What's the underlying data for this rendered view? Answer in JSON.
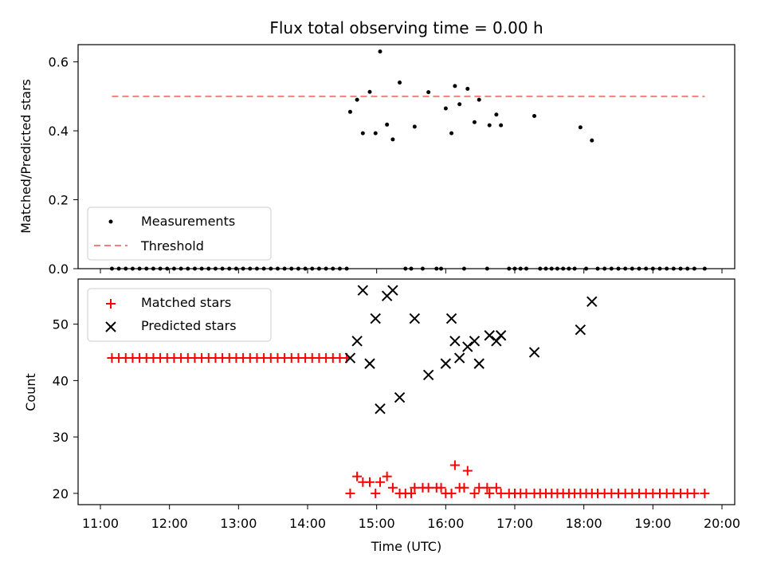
{
  "chart_data": [
    {
      "type": "scatter",
      "title": "Flux total observing time = 0.00 h",
      "ylabel": "Matched/Predicted stars",
      "xlabel": "",
      "xlim": [
        "11:00",
        "20:00"
      ],
      "ylim": [
        0,
        0.65
      ],
      "yticks": [
        "0.0",
        "0.2",
        "0.4",
        "0.6"
      ],
      "grid": false,
      "legend_position": "lower-left",
      "threshold": {
        "name": "Threshold",
        "value": 0.5,
        "x": [
          "11:10",
          "19:45"
        ],
        "color": "#f08080"
      },
      "series": [
        {
          "name": "Measurements",
          "color": "#000000",
          "marker": "dot",
          "points": [
            [
              "11:10",
              0
            ],
            [
              "11:16",
              0
            ],
            [
              "11:22",
              0
            ],
            [
              "11:28",
              0
            ],
            [
              "11:34",
              0
            ],
            [
              "11:40",
              0
            ],
            [
              "11:46",
              0
            ],
            [
              "11:52",
              0
            ],
            [
              "11:58",
              0
            ],
            [
              "12:04",
              0
            ],
            [
              "12:10",
              0
            ],
            [
              "12:16",
              0
            ],
            [
              "12:22",
              0
            ],
            [
              "12:28",
              0
            ],
            [
              "12:34",
              0
            ],
            [
              "12:40",
              0
            ],
            [
              "12:46",
              0
            ],
            [
              "12:52",
              0
            ],
            [
              "12:58",
              0
            ],
            [
              "13:04",
              0
            ],
            [
              "13:10",
              0
            ],
            [
              "13:16",
              0
            ],
            [
              "13:22",
              0
            ],
            [
              "13:28",
              0
            ],
            [
              "13:34",
              0
            ],
            [
              "13:40",
              0
            ],
            [
              "13:46",
              0
            ],
            [
              "13:52",
              0
            ],
            [
              "13:58",
              0
            ],
            [
              "14:04",
              0
            ],
            [
              "14:10",
              0
            ],
            [
              "14:16",
              0
            ],
            [
              "14:22",
              0
            ],
            [
              "14:28",
              0
            ],
            [
              "14:34",
              0
            ],
            [
              "14:37",
              0.455
            ],
            [
              "14:43",
              0.49
            ],
            [
              "14:48",
              0.393
            ],
            [
              "14:54",
              0.513
            ],
            [
              "14:59",
              0.393
            ],
            [
              "15:03",
              0.63
            ],
            [
              "15:09",
              0.418
            ],
            [
              "15:14",
              0.375
            ],
            [
              "15:20",
              0.54
            ],
            [
              "15:25",
              0
            ],
            [
              "15:30",
              0
            ],
            [
              "15:33",
              0.412
            ],
            [
              "15:40",
              0
            ],
            [
              "15:45",
              0.512
            ],
            [
              "15:52",
              0
            ],
            [
              "15:56",
              0
            ],
            [
              "16:00",
              0.465
            ],
            [
              "16:05",
              0.393
            ],
            [
              "16:08",
              0.53
            ],
            [
              "16:12",
              0.477
            ],
            [
              "16:16",
              0
            ],
            [
              "16:19",
              0.522
            ],
            [
              "16:25",
              0.425
            ],
            [
              "16:29",
              0.49
            ],
            [
              "16:36",
              0
            ],
            [
              "16:38",
              0.416
            ],
            [
              "16:44",
              0.447
            ],
            [
              "16:48",
              0.416
            ],
            [
              "16:55",
              0
            ],
            [
              "17:00",
              0
            ],
            [
              "17:05",
              0
            ],
            [
              "17:10",
              0
            ],
            [
              "17:17",
              0.443
            ],
            [
              "17:22",
              0
            ],
            [
              "17:27",
              0
            ],
            [
              "17:32",
              0
            ],
            [
              "17:37",
              0
            ],
            [
              "17:42",
              0
            ],
            [
              "17:47",
              0
            ],
            [
              "17:52",
              0
            ],
            [
              "17:57",
              0.41
            ],
            [
              "18:02",
              0
            ],
            [
              "18:07",
              0.372
            ],
            [
              "18:12",
              0
            ],
            [
              "18:18",
              0
            ],
            [
              "18:24",
              0
            ],
            [
              "18:30",
              0
            ],
            [
              "18:36",
              0
            ],
            [
              "18:42",
              0
            ],
            [
              "18:48",
              0
            ],
            [
              "18:54",
              0
            ],
            [
              "19:00",
              0
            ],
            [
              "19:06",
              0
            ],
            [
              "19:12",
              0
            ],
            [
              "19:18",
              0
            ],
            [
              "19:24",
              0
            ],
            [
              "19:30",
              0
            ],
            [
              "19:36",
              0
            ],
            [
              "19:45",
              0
            ]
          ]
        }
      ],
      "legend": [
        "Measurements",
        "Threshold"
      ]
    },
    {
      "type": "scatter",
      "title": "",
      "ylabel": "Count",
      "xlabel": "Time (UTC)",
      "xlim": [
        "11:00",
        "20:00"
      ],
      "ylim": [
        18,
        58
      ],
      "yticks": [
        "20",
        "30",
        "40",
        "50"
      ],
      "xticks": [
        "11:00",
        "12:00",
        "13:00",
        "14:00",
        "15:00",
        "16:00",
        "17:00",
        "18:00",
        "19:00",
        "20:00"
      ],
      "grid": false,
      "legend_position": "upper-left",
      "series": [
        {
          "name": "Matched stars",
          "color": "#ff0000",
          "marker": "plus",
          "points": [
            [
              "11:10",
              44
            ],
            [
              "11:16",
              44
            ],
            [
              "11:22",
              44
            ],
            [
              "11:28",
              44
            ],
            [
              "11:34",
              44
            ],
            [
              "11:40",
              44
            ],
            [
              "11:46",
              44
            ],
            [
              "11:52",
              44
            ],
            [
              "11:58",
              44
            ],
            [
              "12:04",
              44
            ],
            [
              "12:10",
              44
            ],
            [
              "12:16",
              44
            ],
            [
              "12:22",
              44
            ],
            [
              "12:28",
              44
            ],
            [
              "12:34",
              44
            ],
            [
              "12:40",
              44
            ],
            [
              "12:46",
              44
            ],
            [
              "12:52",
              44
            ],
            [
              "12:58",
              44
            ],
            [
              "13:04",
              44
            ],
            [
              "13:10",
              44
            ],
            [
              "13:16",
              44
            ],
            [
              "13:22",
              44
            ],
            [
              "13:28",
              44
            ],
            [
              "13:34",
              44
            ],
            [
              "13:40",
              44
            ],
            [
              "13:46",
              44
            ],
            [
              "13:52",
              44
            ],
            [
              "13:58",
              44
            ],
            [
              "14:04",
              44
            ],
            [
              "14:10",
              44
            ],
            [
              "14:16",
              44
            ],
            [
              "14:22",
              44
            ],
            [
              "14:28",
              44
            ],
            [
              "14:34",
              44
            ],
            [
              "14:37",
              20
            ],
            [
              "14:43",
              23
            ],
            [
              "14:48",
              22
            ],
            [
              "14:54",
              22
            ],
            [
              "14:59",
              20
            ],
            [
              "15:03",
              22
            ],
            [
              "15:09",
              23
            ],
            [
              "15:14",
              21
            ],
            [
              "15:20",
              20
            ],
            [
              "15:25",
              20
            ],
            [
              "15:30",
              20
            ],
            [
              "15:33",
              21
            ],
            [
              "15:40",
              21
            ],
            [
              "15:45",
              21
            ],
            [
              "15:52",
              21
            ],
            [
              "15:56",
              21
            ],
            [
              "16:00",
              20
            ],
            [
              "16:05",
              20
            ],
            [
              "16:08",
              25
            ],
            [
              "16:12",
              21
            ],
            [
              "16:16",
              21
            ],
            [
              "16:19",
              24
            ],
            [
              "16:25",
              20
            ],
            [
              "16:29",
              21
            ],
            [
              "16:36",
              21
            ],
            [
              "16:38",
              20
            ],
            [
              "16:44",
              21
            ],
            [
              "16:48",
              20
            ],
            [
              "16:55",
              20
            ],
            [
              "17:00",
              20
            ],
            [
              "17:05",
              20
            ],
            [
              "17:10",
              20
            ],
            [
              "17:17",
              20
            ],
            [
              "17:22",
              20
            ],
            [
              "17:27",
              20
            ],
            [
              "17:32",
              20
            ],
            [
              "17:37",
              20
            ],
            [
              "17:42",
              20
            ],
            [
              "17:47",
              20
            ],
            [
              "17:52",
              20
            ],
            [
              "17:57",
              20
            ],
            [
              "18:02",
              20
            ],
            [
              "18:07",
              20
            ],
            [
              "18:12",
              20
            ],
            [
              "18:18",
              20
            ],
            [
              "18:24",
              20
            ],
            [
              "18:30",
              20
            ],
            [
              "18:36",
              20
            ],
            [
              "18:42",
              20
            ],
            [
              "18:48",
              20
            ],
            [
              "18:54",
              20
            ],
            [
              "19:00",
              20
            ],
            [
              "19:06",
              20
            ],
            [
              "19:12",
              20
            ],
            [
              "19:18",
              20
            ],
            [
              "19:24",
              20
            ],
            [
              "19:30",
              20
            ],
            [
              "19:36",
              20
            ],
            [
              "19:45",
              20
            ]
          ]
        },
        {
          "name": "Predicted stars",
          "color": "#000000",
          "marker": "x",
          "points": [
            [
              "14:37",
              44
            ],
            [
              "14:43",
              47
            ],
            [
              "14:48",
              56
            ],
            [
              "14:54",
              43
            ],
            [
              "14:59",
              51
            ],
            [
              "15:03",
              35
            ],
            [
              "15:09",
              55
            ],
            [
              "15:14",
              56
            ],
            [
              "15:20",
              37
            ],
            [
              "15:33",
              51
            ],
            [
              "15:45",
              41
            ],
            [
              "16:00",
              43
            ],
            [
              "16:05",
              51
            ],
            [
              "16:08",
              47
            ],
            [
              "16:12",
              44
            ],
            [
              "16:19",
              46
            ],
            [
              "16:25",
              47
            ],
            [
              "16:29",
              43
            ],
            [
              "16:38",
              48
            ],
            [
              "16:44",
              47
            ],
            [
              "16:48",
              48
            ],
            [
              "17:17",
              45
            ],
            [
              "17:57",
              49
            ],
            [
              "18:07",
              54
            ]
          ]
        }
      ],
      "legend": [
        "Matched stars",
        "Predicted stars"
      ]
    }
  ]
}
